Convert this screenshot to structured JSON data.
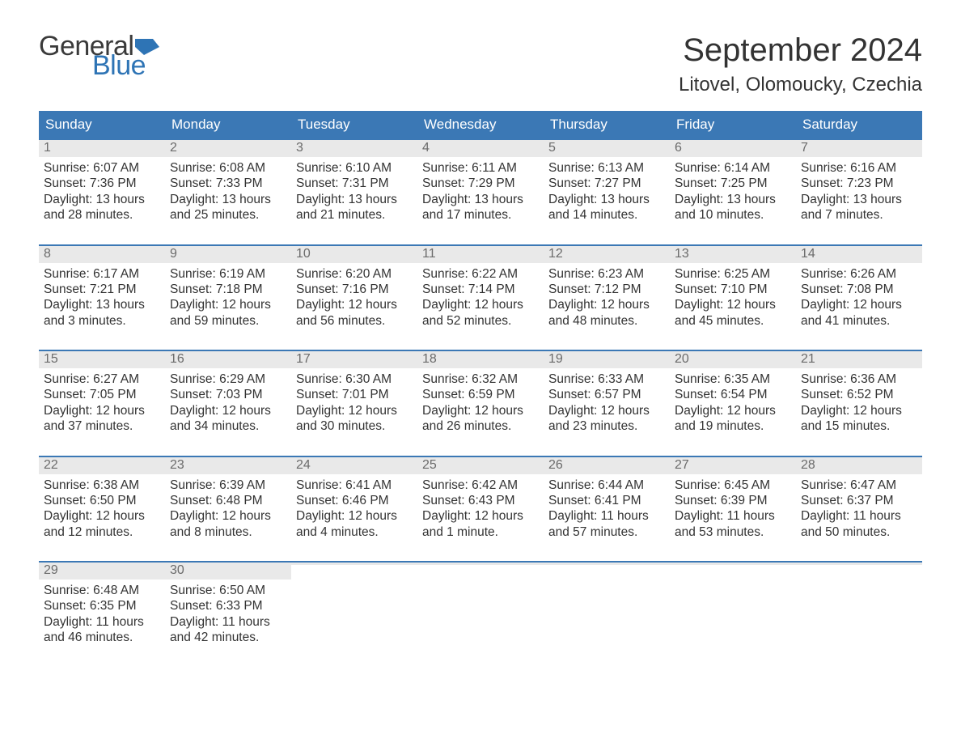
{
  "brand": {
    "text1": "General",
    "text2": "Blue",
    "text_color": "#3a3a3a",
    "blue": "#2e74b5"
  },
  "title": "September 2024",
  "location": "Litovel, Olomoucky, Czechia",
  "colors": {
    "header_bg": "#3b78b5",
    "header_text": "#ffffff",
    "daynum_bg": "#e9e9e9",
    "daynum_text": "#6b6b6b",
    "row_border": "#3b78b5",
    "body_text": "#333333",
    "page_bg": "#ffffff"
  },
  "weekdays": [
    "Sunday",
    "Monday",
    "Tuesday",
    "Wednesday",
    "Thursday",
    "Friday",
    "Saturday"
  ],
  "weeks": [
    [
      {
        "n": "1",
        "sunrise": "6:07 AM",
        "sunset": "7:36 PM",
        "daylight1": "13 hours",
        "daylight2": "and 28 minutes."
      },
      {
        "n": "2",
        "sunrise": "6:08 AM",
        "sunset": "7:33 PM",
        "daylight1": "13 hours",
        "daylight2": "and 25 minutes."
      },
      {
        "n": "3",
        "sunrise": "6:10 AM",
        "sunset": "7:31 PM",
        "daylight1": "13 hours",
        "daylight2": "and 21 minutes."
      },
      {
        "n": "4",
        "sunrise": "6:11 AM",
        "sunset": "7:29 PM",
        "daylight1": "13 hours",
        "daylight2": "and 17 minutes."
      },
      {
        "n": "5",
        "sunrise": "6:13 AM",
        "sunset": "7:27 PM",
        "daylight1": "13 hours",
        "daylight2": "and 14 minutes."
      },
      {
        "n": "6",
        "sunrise": "6:14 AM",
        "sunset": "7:25 PM",
        "daylight1": "13 hours",
        "daylight2": "and 10 minutes."
      },
      {
        "n": "7",
        "sunrise": "6:16 AM",
        "sunset": "7:23 PM",
        "daylight1": "13 hours",
        "daylight2": "and 7 minutes."
      }
    ],
    [
      {
        "n": "8",
        "sunrise": "6:17 AM",
        "sunset": "7:21 PM",
        "daylight1": "13 hours",
        "daylight2": "and 3 minutes."
      },
      {
        "n": "9",
        "sunrise": "6:19 AM",
        "sunset": "7:18 PM",
        "daylight1": "12 hours",
        "daylight2": "and 59 minutes."
      },
      {
        "n": "10",
        "sunrise": "6:20 AM",
        "sunset": "7:16 PM",
        "daylight1": "12 hours",
        "daylight2": "and 56 minutes."
      },
      {
        "n": "11",
        "sunrise": "6:22 AM",
        "sunset": "7:14 PM",
        "daylight1": "12 hours",
        "daylight2": "and 52 minutes."
      },
      {
        "n": "12",
        "sunrise": "6:23 AM",
        "sunset": "7:12 PM",
        "daylight1": "12 hours",
        "daylight2": "and 48 minutes."
      },
      {
        "n": "13",
        "sunrise": "6:25 AM",
        "sunset": "7:10 PM",
        "daylight1": "12 hours",
        "daylight2": "and 45 minutes."
      },
      {
        "n": "14",
        "sunrise": "6:26 AM",
        "sunset": "7:08 PM",
        "daylight1": "12 hours",
        "daylight2": "and 41 minutes."
      }
    ],
    [
      {
        "n": "15",
        "sunrise": "6:27 AM",
        "sunset": "7:05 PM",
        "daylight1": "12 hours",
        "daylight2": "and 37 minutes."
      },
      {
        "n": "16",
        "sunrise": "6:29 AM",
        "sunset": "7:03 PM",
        "daylight1": "12 hours",
        "daylight2": "and 34 minutes."
      },
      {
        "n": "17",
        "sunrise": "6:30 AM",
        "sunset": "7:01 PM",
        "daylight1": "12 hours",
        "daylight2": "and 30 minutes."
      },
      {
        "n": "18",
        "sunrise": "6:32 AM",
        "sunset": "6:59 PM",
        "daylight1": "12 hours",
        "daylight2": "and 26 minutes."
      },
      {
        "n": "19",
        "sunrise": "6:33 AM",
        "sunset": "6:57 PM",
        "daylight1": "12 hours",
        "daylight2": "and 23 minutes."
      },
      {
        "n": "20",
        "sunrise": "6:35 AM",
        "sunset": "6:54 PM",
        "daylight1": "12 hours",
        "daylight2": "and 19 minutes."
      },
      {
        "n": "21",
        "sunrise": "6:36 AM",
        "sunset": "6:52 PM",
        "daylight1": "12 hours",
        "daylight2": "and 15 minutes."
      }
    ],
    [
      {
        "n": "22",
        "sunrise": "6:38 AM",
        "sunset": "6:50 PM",
        "daylight1": "12 hours",
        "daylight2": "and 12 minutes."
      },
      {
        "n": "23",
        "sunrise": "6:39 AM",
        "sunset": "6:48 PM",
        "daylight1": "12 hours",
        "daylight2": "and 8 minutes."
      },
      {
        "n": "24",
        "sunrise": "6:41 AM",
        "sunset": "6:46 PM",
        "daylight1": "12 hours",
        "daylight2": "and 4 minutes."
      },
      {
        "n": "25",
        "sunrise": "6:42 AM",
        "sunset": "6:43 PM",
        "daylight1": "12 hours",
        "daylight2": "and 1 minute."
      },
      {
        "n": "26",
        "sunrise": "6:44 AM",
        "sunset": "6:41 PM",
        "daylight1": "11 hours",
        "daylight2": "and 57 minutes."
      },
      {
        "n": "27",
        "sunrise": "6:45 AM",
        "sunset": "6:39 PM",
        "daylight1": "11 hours",
        "daylight2": "and 53 minutes."
      },
      {
        "n": "28",
        "sunrise": "6:47 AM",
        "sunset": "6:37 PM",
        "daylight1": "11 hours",
        "daylight2": "and 50 minutes."
      }
    ],
    [
      {
        "n": "29",
        "sunrise": "6:48 AM",
        "sunset": "6:35 PM",
        "daylight1": "11 hours",
        "daylight2": "and 46 minutes."
      },
      {
        "n": "30",
        "sunrise": "6:50 AM",
        "sunset": "6:33 PM",
        "daylight1": "11 hours",
        "daylight2": "and 42 minutes."
      },
      {
        "empty": true
      },
      {
        "empty": true
      },
      {
        "empty": true
      },
      {
        "empty": true
      },
      {
        "empty": true
      }
    ]
  ],
  "labels": {
    "sunrise_prefix": "Sunrise: ",
    "sunset_prefix": "Sunset: ",
    "daylight_prefix": "Daylight: "
  }
}
